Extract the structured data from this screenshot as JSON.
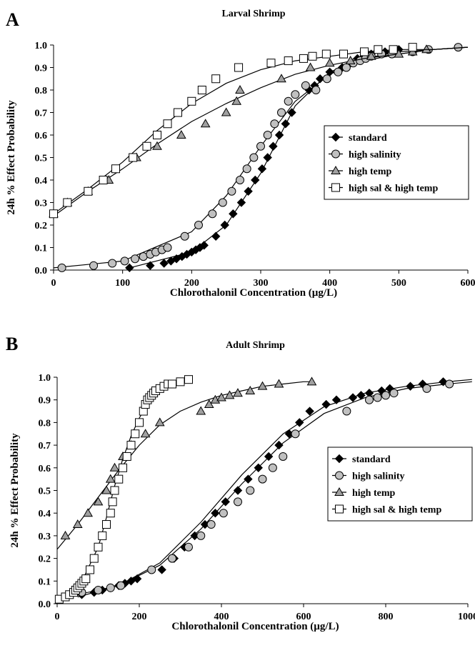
{
  "chart_data": [
    {
      "panel": "A",
      "type": "scatter",
      "title": "Larval Shrimp",
      "xlabel": "Chlorothalonil Concentration (µg/L)",
      "ylabel": "24h % Effect Probability",
      "xlim": [
        0,
        600
      ],
      "ylim": [
        0,
        1
      ],
      "xticks": [
        0,
        100,
        200,
        300,
        400,
        500,
        600
      ],
      "yticks": [
        0.0,
        0.1,
        0.2,
        0.3,
        0.4,
        0.5,
        0.6,
        0.7,
        0.8,
        0.9,
        1.0
      ],
      "ytick_labels": [
        "0.0",
        "0.1",
        "0.2",
        "0.3",
        "0.4",
        "0.5",
        "0.6",
        "0.7",
        "0.8",
        "0.9",
        "1.0"
      ],
      "grid": false,
      "legend_position": "middle-right",
      "series": [
        {
          "name": "standard",
          "marker": "diamond-filled",
          "x": [
            110,
            140,
            160,
            170,
            178,
            186,
            193,
            200,
            206,
            212,
            218,
            235,
            248,
            260,
            272,
            282,
            292,
            302,
            310,
            318,
            327,
            336,
            345,
            370,
            378,
            386,
            400,
            418,
            430,
            440,
            450,
            460,
            480,
            500,
            520
          ],
          "y": [
            0.01,
            0.02,
            0.03,
            0.04,
            0.05,
            0.06,
            0.07,
            0.08,
            0.09,
            0.1,
            0.11,
            0.15,
            0.2,
            0.25,
            0.3,
            0.35,
            0.4,
            0.45,
            0.5,
            0.55,
            0.6,
            0.65,
            0.7,
            0.8,
            0.82,
            0.85,
            0.88,
            0.9,
            0.92,
            0.94,
            0.95,
            0.96,
            0.97,
            0.98,
            0.98
          ],
          "curve_x": [
            110,
            200,
            250,
            300,
            350,
            400,
            450,
            500,
            550,
            600
          ],
          "curve_y": [
            0.01,
            0.08,
            0.2,
            0.43,
            0.73,
            0.88,
            0.94,
            0.97,
            0.98,
            0.99
          ]
        },
        {
          "name": "high salinity",
          "marker": "circle-filled",
          "x": [
            12,
            58,
            85,
            103,
            118,
            130,
            140,
            148,
            157,
            165,
            190,
            210,
            230,
            245,
            258,
            270,
            280,
            290,
            300,
            310,
            320,
            330,
            340,
            350,
            365,
            380,
            396,
            412,
            424,
            434,
            444,
            452,
            460,
            475,
            490,
            520,
            543,
            586
          ],
          "y": [
            0.01,
            0.02,
            0.03,
            0.04,
            0.05,
            0.06,
            0.07,
            0.08,
            0.09,
            0.1,
            0.15,
            0.2,
            0.25,
            0.3,
            0.35,
            0.4,
            0.45,
            0.5,
            0.55,
            0.6,
            0.65,
            0.7,
            0.75,
            0.78,
            0.82,
            0.8,
            0.85,
            0.88,
            0.9,
            0.92,
            0.93,
            0.94,
            0.95,
            0.96,
            0.96,
            0.97,
            0.98,
            0.99
          ],
          "curve_x": [
            0,
            100,
            200,
            250,
            300,
            350,
            400,
            450,
            500,
            550,
            600
          ],
          "curve_y": [
            0.01,
            0.04,
            0.17,
            0.33,
            0.55,
            0.75,
            0.87,
            0.93,
            0.96,
            0.98,
            0.99
          ]
        },
        {
          "name": "high temp",
          "marker": "triangle-filled",
          "x": [
            0,
            20,
            50,
            80,
            120,
            150,
            185,
            220,
            250,
            265,
            270,
            330,
            372,
            400,
            430,
            460,
            500,
            520,
            540
          ],
          "y": [
            0.25,
            0.3,
            0.35,
            0.4,
            0.5,
            0.55,
            0.6,
            0.65,
            0.7,
            0.75,
            0.8,
            0.85,
            0.9,
            0.92,
            0.93,
            0.95,
            0.96,
            0.97,
            0.98
          ],
          "curve_x": [
            0,
            50,
            100,
            150,
            200,
            250,
            300,
            350,
            400,
            450,
            500,
            550,
            600
          ],
          "curve_y": [
            0.24,
            0.35,
            0.45,
            0.56,
            0.66,
            0.74,
            0.81,
            0.87,
            0.91,
            0.94,
            0.96,
            0.98,
            0.99
          ]
        },
        {
          "name": "high sal & high temp",
          "marker": "square-open",
          "x": [
            0,
            20,
            50,
            72,
            90,
            115,
            135,
            150,
            165,
            180,
            200,
            215,
            235,
            268,
            315,
            340,
            362,
            375,
            395,
            420,
            450,
            470,
            492,
            520
          ],
          "y": [
            0.25,
            0.3,
            0.35,
            0.4,
            0.45,
            0.5,
            0.55,
            0.6,
            0.65,
            0.7,
            0.75,
            0.8,
            0.85,
            0.9,
            0.92,
            0.93,
            0.94,
            0.95,
            0.96,
            0.96,
            0.97,
            0.98,
            0.98,
            0.99
          ],
          "curve_x": [
            0,
            50,
            100,
            150,
            200,
            250,
            300,
            350,
            400,
            450,
            500,
            550,
            600
          ],
          "curve_y": [
            0.25,
            0.36,
            0.48,
            0.62,
            0.74,
            0.83,
            0.89,
            0.93,
            0.95,
            0.97,
            0.98,
            0.98,
            0.99
          ]
        }
      ]
    },
    {
      "panel": "B",
      "type": "scatter",
      "title": "Adult Shrimp",
      "xlabel": "Chlorothalonil Concentration (µg/L)",
      "ylabel": "24h % Effect Probability",
      "xlim": [
        0,
        1000
      ],
      "ylim": [
        0,
        1
      ],
      "xticks": [
        0,
        200,
        400,
        600,
        800,
        1000
      ],
      "yticks": [
        0.0,
        0.1,
        0.2,
        0.3,
        0.4,
        0.5,
        0.6,
        0.7,
        0.8,
        0.9,
        1.0
      ],
      "ytick_labels": [
        "0.0",
        "0.1",
        "0.2",
        "0.3",
        "0.4",
        "0.5",
        "0.6",
        "0.7",
        "0.8",
        "0.9",
        "1.0"
      ],
      "grid": false,
      "legend_position": "middle-right",
      "series": [
        {
          "name": "standard",
          "marker": "diamond-filled",
          "x": [
            60,
            90,
            110,
            130,
            150,
            165,
            180,
            195,
            255,
            285,
            310,
            335,
            360,
            385,
            410,
            440,
            465,
            490,
            515,
            540,
            565,
            590,
            615,
            655,
            680,
            720,
            740,
            760,
            790,
            810,
            860,
            890,
            940
          ],
          "y": [
            0.04,
            0.05,
            0.06,
            0.07,
            0.08,
            0.09,
            0.1,
            0.11,
            0.15,
            0.2,
            0.25,
            0.3,
            0.35,
            0.4,
            0.45,
            0.5,
            0.55,
            0.6,
            0.65,
            0.7,
            0.75,
            0.8,
            0.85,
            0.88,
            0.9,
            0.91,
            0.92,
            0.93,
            0.94,
            0.95,
            0.96,
            0.97,
            0.98
          ],
          "curve_x": [
            50,
            150,
            250,
            350,
            450,
            550,
            650,
            750,
            850,
            950,
            1010
          ],
          "curve_y": [
            0.03,
            0.08,
            0.18,
            0.36,
            0.57,
            0.75,
            0.87,
            0.93,
            0.96,
            0.98,
            0.99
          ]
        },
        {
          "name": "high salinity",
          "marker": "circle-filled",
          "x": [
            60,
            100,
            130,
            155,
            230,
            280,
            320,
            350,
            375,
            405,
            440,
            470,
            500,
            525,
            550,
            580,
            705,
            760,
            780,
            800,
            820,
            900,
            955
          ],
          "y": [
            0.05,
            0.06,
            0.07,
            0.08,
            0.15,
            0.2,
            0.25,
            0.3,
            0.35,
            0.4,
            0.45,
            0.5,
            0.55,
            0.6,
            0.65,
            0.75,
            0.85,
            0.9,
            0.91,
            0.92,
            0.93,
            0.95,
            0.97
          ],
          "curve_x": [
            50,
            150,
            250,
            350,
            450,
            550,
            650,
            750,
            850,
            950,
            1010
          ],
          "curve_y": [
            0.04,
            0.08,
            0.17,
            0.33,
            0.53,
            0.71,
            0.84,
            0.91,
            0.95,
            0.97,
            0.98
          ]
        },
        {
          "name": "high temp",
          "marker": "triangle-filled",
          "x": [
            20,
            50,
            75,
            100,
            120,
            130,
            140,
            160,
            180,
            215,
            250,
            350,
            370,
            385,
            400,
            420,
            440,
            470,
            500,
            540,
            620
          ],
          "y": [
            0.3,
            0.35,
            0.4,
            0.45,
            0.5,
            0.55,
            0.6,
            0.65,
            0.7,
            0.75,
            0.8,
            0.85,
            0.88,
            0.9,
            0.91,
            0.92,
            0.93,
            0.94,
            0.96,
            0.97,
            0.98
          ],
          "curve_x": [
            0,
            50,
            100,
            150,
            200,
            250,
            300,
            350,
            400,
            450,
            500,
            550,
            600,
            620
          ],
          "curve_y": [
            0.24,
            0.35,
            0.47,
            0.59,
            0.7,
            0.79,
            0.85,
            0.89,
            0.92,
            0.94,
            0.96,
            0.97,
            0.98,
            0.98
          ]
        },
        {
          "name": "high sal & high temp",
          "marker": "square-open",
          "x": [
            5,
            20,
            30,
            40,
            45,
            50,
            55,
            60,
            65,
            70,
            80,
            90,
            100,
            110,
            120,
            130,
            135,
            140,
            150,
            160,
            170,
            180,
            190,
            200,
            210,
            215,
            220,
            225,
            230,
            235,
            240,
            250,
            260,
            270,
            280,
            300,
            320
          ],
          "y": [
            0.02,
            0.03,
            0.04,
            0.05,
            0.06,
            0.07,
            0.08,
            0.09,
            0.1,
            0.11,
            0.15,
            0.2,
            0.25,
            0.3,
            0.35,
            0.4,
            0.45,
            0.5,
            0.55,
            0.6,
            0.65,
            0.7,
            0.75,
            0.8,
            0.85,
            0.88,
            0.9,
            0.91,
            0.92,
            0.93,
            0.94,
            0.95,
            0.96,
            0.97,
            0.97,
            0.98,
            0.99
          ],
          "curve_x": [
            0,
            50,
            100,
            120,
            140,
            160,
            180,
            200,
            220,
            240,
            260,
            280,
            300,
            320
          ],
          "curve_y": [
            0.02,
            0.06,
            0.25,
            0.38,
            0.52,
            0.64,
            0.74,
            0.82,
            0.88,
            0.92,
            0.95,
            0.96,
            0.97,
            0.98
          ]
        }
      ]
    }
  ]
}
